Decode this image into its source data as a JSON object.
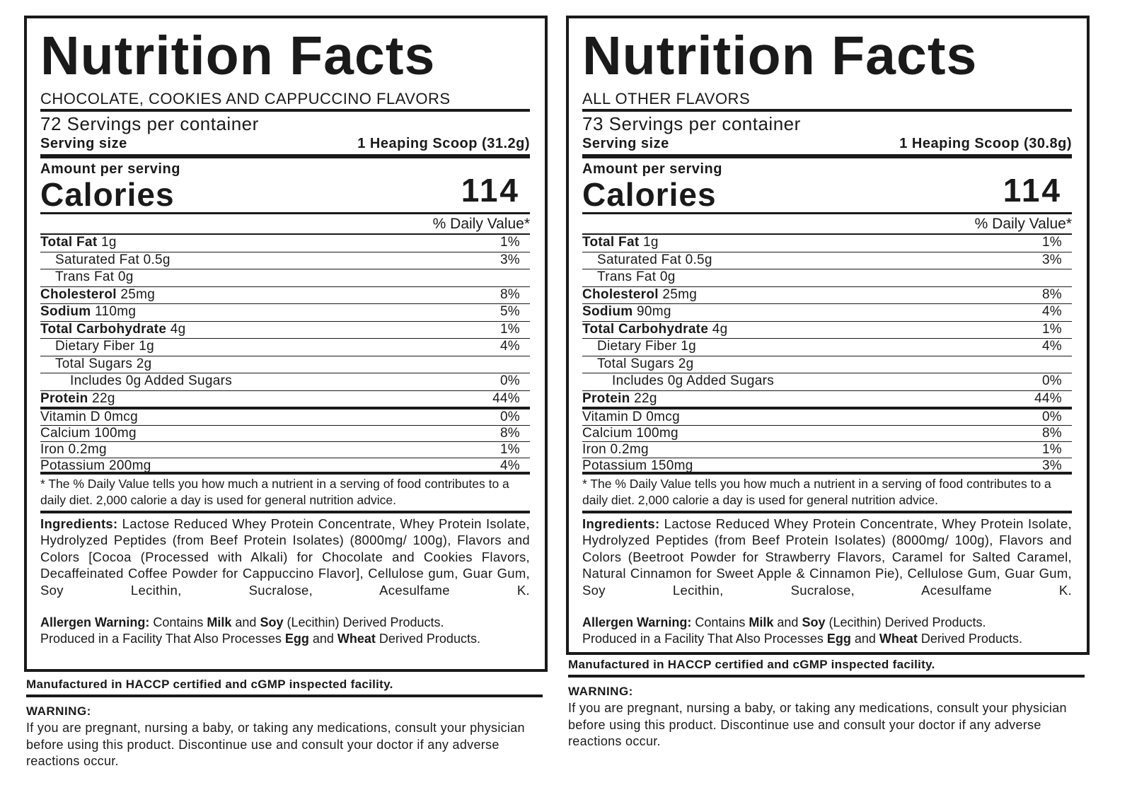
{
  "panels": [
    {
      "title": "Nutrition Facts",
      "subtitle": "CHOCOLATE, COOKIES  AND CAPPUCCINO FLAVORS",
      "servings": "72 Servings per container",
      "serving_size_label": "Serving size",
      "serving_size_value": "1 Heaping Scoop (31.2g)",
      "amount_label": "Amount per serving",
      "calories_label": "Calories",
      "calories_value": "114",
      "dv_header": "% Daily Value*",
      "nutrients": [
        {
          "bold": "Total Fat",
          "rest": " 1g",
          "dv": "1%",
          "indent": 0
        },
        {
          "bold": "",
          "rest": "Saturated Fat 0.5g",
          "dv": "3%",
          "indent": 1
        },
        {
          "bold": "",
          "rest": "Trans Fat 0g",
          "dv": "",
          "indent": 1
        },
        {
          "bold": "Cholesterol",
          "rest": " 25mg",
          "dv": "8%",
          "indent": 0
        },
        {
          "bold": "Sodium",
          "rest": " 110mg",
          "dv": "5%",
          "indent": 0
        },
        {
          "bold": "Total Carbohydrate",
          "rest": " 4g",
          "dv": "1%",
          "indent": 0
        },
        {
          "bold": "",
          "rest": "Dietary Fiber 1g",
          "dv": "4%",
          "indent": 1
        },
        {
          "bold": "",
          "rest": "Total Sugars 2g",
          "dv": "",
          "indent": 1
        },
        {
          "bold": "",
          "rest": "Includes 0g Added Sugars",
          "dv": "0%",
          "indent": 2
        },
        {
          "bold": "Protein",
          "rest": " 22g",
          "dv": "44%",
          "indent": 0
        }
      ],
      "vitamins": [
        {
          "label": "Vitamin D 0mcg",
          "dv": "0%"
        },
        {
          "label": "Calcium 100mg",
          "dv": "8%"
        },
        {
          "label": "Iron 0.2mg",
          "dv": "1%"
        },
        {
          "label": "Potassium 200mg",
          "dv": "4%"
        }
      ],
      "footnote": "* The % Daily Value tells you how much a nutrient in a serving of food contributes to a daily diet. 2,000 calorie a day is used for general nutrition advice.",
      "ingredients_label": "Ingredients:",
      "ingredients": " Lactose Reduced Whey Protein Concentrate, Whey Protein Isolate, Hydrolyzed Peptides (from Beef Protein Isolates) (8000mg/ 100g), Flavors and Colors [Cocoa (Processed with Alkali) for Chocolate and Cookies Flavors, Decaffeinated Coffee Powder for Cappuccino Flavor], Cellulose gum, Guar Gum, Soy Lecithin, Sucralose, Acesulfame K.",
      "allergen": [
        {
          "t": "Allergen Warning:",
          "b": true
        },
        {
          "t": " Contains ",
          "b": false
        },
        {
          "t": "Milk",
          "b": true
        },
        {
          "t": " and ",
          "b": false
        },
        {
          "t": "Soy",
          "b": true
        },
        {
          "t": " (Lecithin) Derived Products.",
          "b": false
        },
        {
          "t": "\n",
          "b": false
        },
        {
          "t": "Produced in a Facility That Also Processes ",
          "b": false
        },
        {
          "t": "Egg",
          "b": true
        },
        {
          "t": " and ",
          "b": false
        },
        {
          "t": "Wheat",
          "b": true
        },
        {
          "t": " Derived Products.",
          "b": false
        }
      ]
    },
    {
      "title": "Nutrition Facts",
      "subtitle": "ALL OTHER FLAVORS",
      "servings": "73 Servings per container",
      "serving_size_label": "Serving size",
      "serving_size_value": "1 Heaping Scoop (30.8g)",
      "amount_label": "Amount per serving",
      "calories_label": "Calories",
      "calories_value": "114",
      "dv_header": "% Daily Value*",
      "nutrients": [
        {
          "bold": "Total Fat",
          "rest": " 1g",
          "dv": "1%",
          "indent": 0
        },
        {
          "bold": "",
          "rest": "Saturated Fat 0.5g",
          "dv": "3%",
          "indent": 1
        },
        {
          "bold": "",
          "rest": "Trans Fat 0g",
          "dv": "",
          "indent": 1
        },
        {
          "bold": "Cholesterol",
          "rest": " 25mg",
          "dv": "8%",
          "indent": 0
        },
        {
          "bold": "Sodium",
          "rest": " 90mg",
          "dv": "4%",
          "indent": 0
        },
        {
          "bold": "Total Carbohydrate",
          "rest": " 4g",
          "dv": "1%",
          "indent": 0
        },
        {
          "bold": "",
          "rest": "Dietary Fiber 1g",
          "dv": "4%",
          "indent": 1
        },
        {
          "bold": "",
          "rest": "Total Sugars 2g",
          "dv": "",
          "indent": 1
        },
        {
          "bold": "",
          "rest": "Includes 0g Added Sugars",
          "dv": "0%",
          "indent": 2
        },
        {
          "bold": "Protein",
          "rest": " 22g",
          "dv": "44%",
          "indent": 0
        }
      ],
      "vitamins": [
        {
          "label": "Vitamin D 0mcg",
          "dv": "0%"
        },
        {
          "label": "Calcium 100mg",
          "dv": "8%"
        },
        {
          "label": "Iron 0.2mg",
          "dv": "1%"
        },
        {
          "label": "Potassium 150mg",
          "dv": "3%"
        }
      ],
      "footnote": "* The % Daily Value tells you how much a nutrient in a serving of food contributes to a daily diet. 2,000 calorie a day is used for general nutrition advice.",
      "ingredients_label": "Ingredients:",
      "ingredients": " Lactose Reduced Whey Protein Concentrate, Whey Protein Isolate, Hydrolyzed Peptides (from Beef Protein Isolates) (8000mg/ 100g), Flavors and Colors (Beetroot Powder for Strawberry Flavors, Caramel for Salted Caramel, Natural Cinnamon for Sweet Apple & Cinnamon Pie), Cellulose Gum, Guar Gum, Soy Lecithin, Sucralose, Acesulfame K.",
      "allergen": [
        {
          "t": "Allergen Warning:",
          "b": true
        },
        {
          "t": " Contains ",
          "b": false
        },
        {
          "t": "Milk",
          "b": true
        },
        {
          "t": " and ",
          "b": false
        },
        {
          "t": "Soy",
          "b": true
        },
        {
          "t": " (Lecithin) Derived Products.",
          "b": false
        },
        {
          "t": "\n",
          "b": false
        },
        {
          "t": "Produced in a Facility That Also Processes ",
          "b": false
        },
        {
          "t": "Egg",
          "b": true
        },
        {
          "t": " and ",
          "b": false
        },
        {
          "t": "Wheat",
          "b": true
        },
        {
          "t": " Derived Products.",
          "b": false
        }
      ]
    }
  ],
  "below": [
    {
      "facility": "Manufactured in HACCP certified and cGMP inspected facility.",
      "warning_title": "WARNING:",
      "warning_text": "If you are pregnant, nursing a baby, or taking any medications, consult your physician before using this product. Discontinue use and consult your doctor if any adverse reactions occur."
    },
    {
      "facility": "Manufactured in HACCP certified and cGMP inspected facility.",
      "warning_title": "WARNING:",
      "warning_text": "If you are pregnant, nursing a baby, or taking any medications, consult your physician before using this product. Discontinue use and consult your doctor if any adverse reactions occur."
    }
  ]
}
